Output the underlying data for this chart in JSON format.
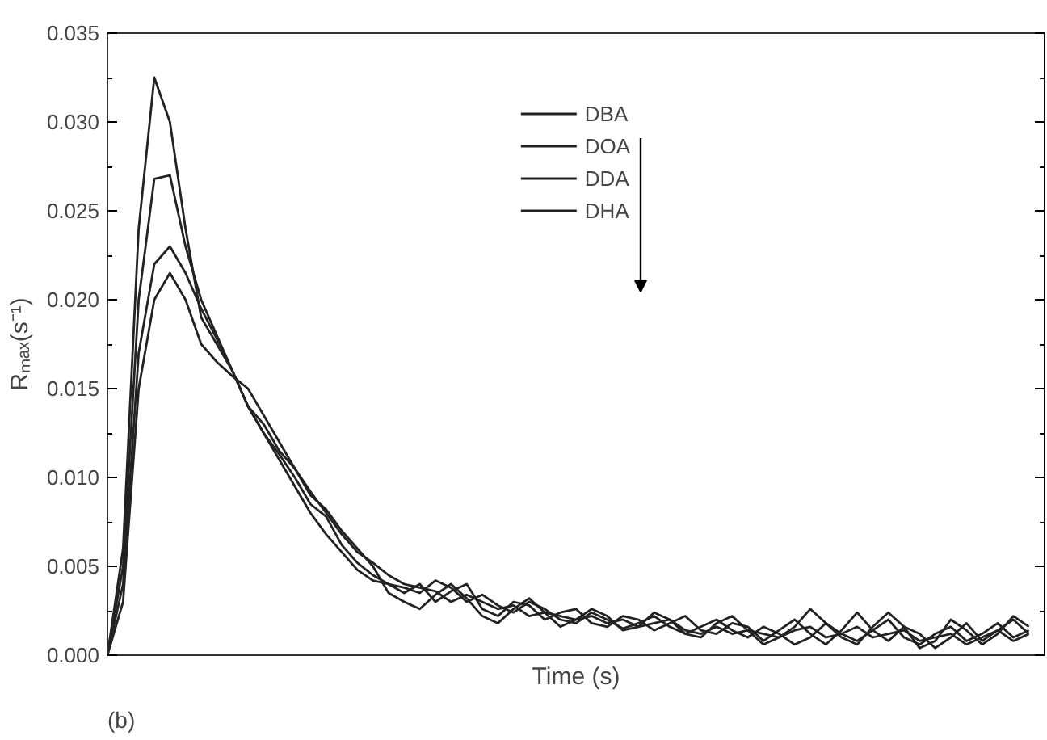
{
  "chart_data": {
    "type": "line",
    "xlabel": "Time (s)",
    "ylabel": "Rₘₐₓ(s⁻¹)",
    "annotations": [
      "(b)"
    ],
    "categories": [
      null,
      null,
      null,
      null,
      null,
      null,
      null,
      null,
      null,
      null,
      null,
      null,
      null,
      null,
      null,
      null,
      null,
      null,
      null,
      null,
      null,
      null,
      null,
      null,
      null,
      null,
      null,
      null,
      null,
      null,
      null,
      null,
      null,
      null,
      null,
      null,
      null,
      null,
      null,
      null,
      null,
      null,
      null,
      null,
      null,
      null,
      null,
      null,
      null,
      null,
      null,
      null,
      null,
      null,
      null,
      null,
      null,
      null,
      null,
      null
    ],
    "ylim": [
      0,
      0.035
    ],
    "yticks": [
      {
        "value": 0,
        "label": "0.000"
      },
      {
        "value": 0.005,
        "label": "0.005"
      },
      {
        "value": 0.01,
        "label": "0.010"
      },
      {
        "value": 0.015,
        "label": "0.015"
      },
      {
        "value": 0.02,
        "label": "0.020"
      },
      {
        "value": 0.025,
        "label": "0.025"
      },
      {
        "value": 0.03,
        "label": "0.030"
      },
      {
        "value": 0.035,
        "label": "0.035"
      }
    ],
    "legend": "top",
    "grid": false,
    "marker": "none",
    "line_style": "solid",
    "series": [
      {
        "name": "DBA",
        "color": "#222222",
        "values": [
          0,
          0.006,
          0.024,
          0.0325,
          0.03,
          0.024,
          0.019,
          0.0175,
          0.016,
          0.014,
          0.0125,
          0.011,
          0.0095,
          0.008,
          0.0068,
          0.0058,
          0.0048,
          0.0042,
          0.004,
          0.0038,
          0.0035,
          0.0042,
          0.0038,
          0.003,
          0.0034,
          0.0028,
          0.0024,
          0.003,
          0.0026,
          0.002,
          0.0018,
          0.0024,
          0.002,
          0.0015,
          0.0018,
          0.0022,
          0.0016,
          0.0012,
          0.0016,
          0.002,
          0.0014,
          0.001,
          0.0016,
          0.0012,
          0.0006,
          0.001,
          0.0018,
          0.0012,
          0.0008,
          0.0014,
          0.002,
          0.001,
          0.0006,
          0.0012,
          0.0016,
          0.0008,
          0.0012,
          0.0018,
          0.001,
          0.0014
        ]
      },
      {
        "name": "DOA",
        "color": "#222222",
        "values": [
          0,
          0.005,
          0.02,
          0.0268,
          0.027,
          0.023,
          0.02,
          0.018,
          0.016,
          0.014,
          0.0125,
          0.0113,
          0.01,
          0.0085,
          0.0078,
          0.0062,
          0.0052,
          0.0045,
          0.004,
          0.0035,
          0.004,
          0.003,
          0.0036,
          0.004,
          0.0026,
          0.0022,
          0.003,
          0.0028,
          0.002,
          0.0024,
          0.0026,
          0.0018,
          0.0016,
          0.0022,
          0.002,
          0.0014,
          0.0018,
          0.0022,
          0.0014,
          0.0012,
          0.0018,
          0.0016,
          0.0008,
          0.0014,
          0.002,
          0.0012,
          0.0006,
          0.0014,
          0.0024,
          0.0014,
          0.0008,
          0.0016,
          0.0012,
          0.0004,
          0.001,
          0.0018,
          0.0008,
          0.0014,
          0.002,
          0.0012
        ]
      },
      {
        "name": "DDA",
        "color": "#222222",
        "values": [
          0,
          0.004,
          0.017,
          0.022,
          0.023,
          0.0215,
          0.0195,
          0.0178,
          0.016,
          0.014,
          0.013,
          0.0115,
          0.0105,
          0.0092,
          0.008,
          0.0068,
          0.0058,
          0.0052,
          0.0045,
          0.004,
          0.0038,
          0.0036,
          0.003,
          0.0034,
          0.003,
          0.0026,
          0.0028,
          0.0022,
          0.0024,
          0.0022,
          0.002,
          0.0022,
          0.0018,
          0.002,
          0.0016,
          0.0018,
          0.002,
          0.0014,
          0.0012,
          0.0016,
          0.0012,
          0.0014,
          0.0012,
          0.001,
          0.0014,
          0.0016,
          0.001,
          0.0012,
          0.0016,
          0.001,
          0.0012,
          0.0014,
          0.0008,
          0.001,
          0.0012,
          0.0006,
          0.001,
          0.0014,
          0.0008,
          0.0012
        ]
      },
      {
        "name": "DHA",
        "color": "#222222",
        "values": [
          0,
          0.003,
          0.015,
          0.02,
          0.0215,
          0.02,
          0.0175,
          0.0165,
          0.0157,
          0.015,
          0.0135,
          0.012,
          0.0105,
          0.009,
          0.0082,
          0.007,
          0.006,
          0.005,
          0.0035,
          0.003,
          0.0026,
          0.0034,
          0.004,
          0.0032,
          0.0022,
          0.0018,
          0.0026,
          0.0032,
          0.0024,
          0.0016,
          0.002,
          0.0026,
          0.0022,
          0.0014,
          0.0016,
          0.0024,
          0.002,
          0.0012,
          0.001,
          0.0018,
          0.0022,
          0.0014,
          0.0006,
          0.001,
          0.0016,
          0.0026,
          0.0018,
          0.001,
          0.0006,
          0.0016,
          0.0024,
          0.0016,
          0.0004,
          0.0008,
          0.002,
          0.0014,
          0.0006,
          0.0012,
          0.0022,
          0.0016
        ]
      }
    ]
  }
}
